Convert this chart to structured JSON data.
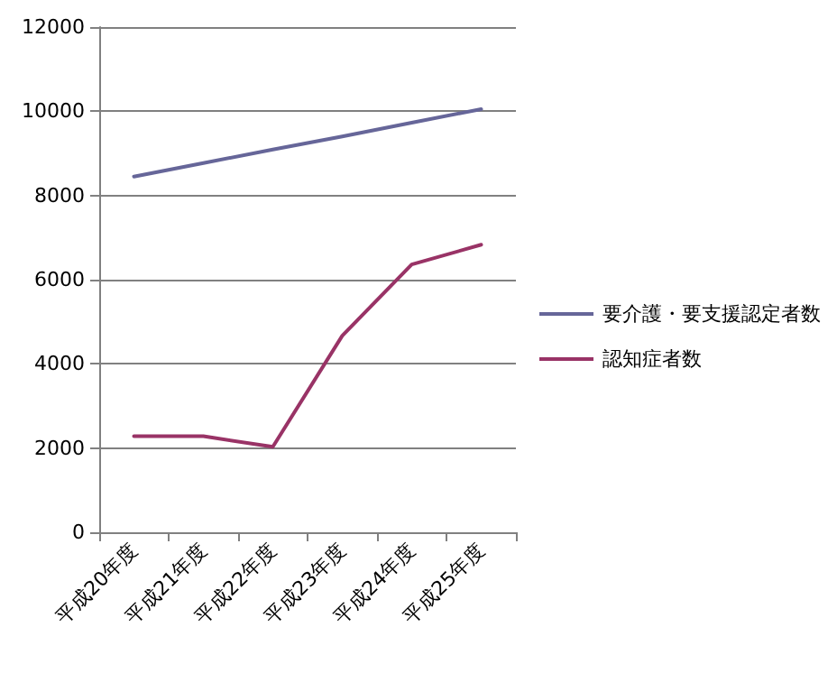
{
  "chart_data": {
    "type": "line",
    "categories": [
      "平成20年度",
      "平成21年度",
      "平成22年度",
      "平成23年度",
      "平成24年度",
      "平成25年度"
    ],
    "series": [
      {
        "name": "要介護・要支援認定者数",
        "color": "#666699",
        "values": [
          8450,
          8770,
          9090,
          9400,
          9730,
          10050
        ]
      },
      {
        "name": "認知症者数",
        "color": "#993366",
        "values": [
          2280,
          2280,
          2030,
          4670,
          6360,
          6830
        ]
      }
    ],
    "ylim": [
      0,
      12000
    ],
    "yticks": [
      0,
      2000,
      4000,
      6000,
      8000,
      10000,
      12000
    ],
    "grid": "y",
    "legend": "right",
    "marker": "none",
    "line_style": "solid"
  }
}
